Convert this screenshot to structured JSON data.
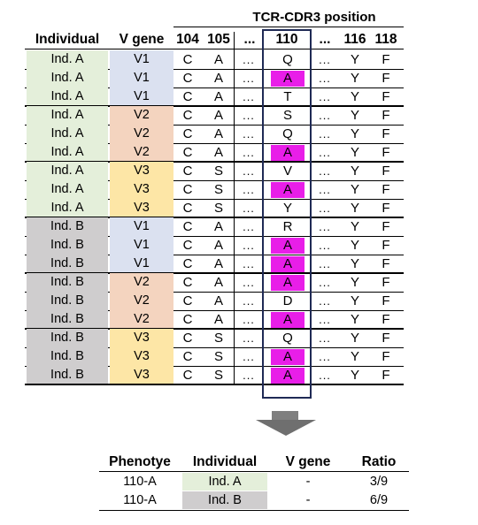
{
  "group_header": "TCR-CDR3 position",
  "headers": {
    "individual": "Individual",
    "vgene": "V gene",
    "p104": "104",
    "p105": "105",
    "pdots1": "...",
    "p110": "110",
    "pdots2": "...",
    "p116": "116",
    "p118": "118"
  },
  "colors": {
    "ind_a": "#e4efda",
    "ind_b": "#cfcdce",
    "v1": "#dbe1f0",
    "v2": "#f4d4bf",
    "v3": "#fde6a6",
    "highlight": "#e81ee8",
    "box": "#1f2a55"
  },
  "rows": [
    {
      "ind": "Ind. A",
      "v": "V1",
      "a104": "C",
      "a105": "A",
      "dots": "...",
      "a110": "Q",
      "hl": false,
      "dots2": "...",
      "a116": "Y",
      "a118": "F"
    },
    {
      "ind": "Ind. A",
      "v": "V1",
      "a104": "C",
      "a105": "A",
      "dots": "...",
      "a110": "A",
      "hl": true,
      "dots2": "...",
      "a116": "Y",
      "a118": "F"
    },
    {
      "ind": "Ind. A",
      "v": "V1",
      "a104": "C",
      "a105": "A",
      "dots": "...",
      "a110": "T",
      "hl": false,
      "dots2": "...",
      "a116": "Y",
      "a118": "F"
    },
    {
      "ind": "Ind. A",
      "v": "V2",
      "a104": "C",
      "a105": "A",
      "dots": "...",
      "a110": "S",
      "hl": false,
      "dots2": "...",
      "a116": "Y",
      "a118": "F"
    },
    {
      "ind": "Ind. A",
      "v": "V2",
      "a104": "C",
      "a105": "A",
      "dots": "...",
      "a110": "Q",
      "hl": false,
      "dots2": "...",
      "a116": "Y",
      "a118": "F"
    },
    {
      "ind": "Ind. A",
      "v": "V2",
      "a104": "C",
      "a105": "A",
      "dots": "...",
      "a110": "A",
      "hl": true,
      "dots2": "...",
      "a116": "Y",
      "a118": "F"
    },
    {
      "ind": "Ind. A",
      "v": "V3",
      "a104": "C",
      "a105": "S",
      "dots": "...",
      "a110": "V",
      "hl": false,
      "dots2": "...",
      "a116": "Y",
      "a118": "F"
    },
    {
      "ind": "Ind. A",
      "v": "V3",
      "a104": "C",
      "a105": "S",
      "dots": "...",
      "a110": "A",
      "hl": true,
      "dots2": "...",
      "a116": "Y",
      "a118": "F"
    },
    {
      "ind": "Ind. A",
      "v": "V3",
      "a104": "C",
      "a105": "S",
      "dots": "...",
      "a110": "Y",
      "hl": false,
      "dots2": "...",
      "a116": "Y",
      "a118": "F"
    },
    {
      "ind": "Ind. B",
      "v": "V1",
      "a104": "C",
      "a105": "A",
      "dots": "...",
      "a110": "R",
      "hl": false,
      "dots2": "...",
      "a116": "Y",
      "a118": "F"
    },
    {
      "ind": "Ind. B",
      "v": "V1",
      "a104": "C",
      "a105": "A",
      "dots": "...",
      "a110": "A",
      "hl": true,
      "dots2": "...",
      "a116": "Y",
      "a118": "F"
    },
    {
      "ind": "Ind. B",
      "v": "V1",
      "a104": "C",
      "a105": "A",
      "dots": "...",
      "a110": "A",
      "hl": true,
      "dots2": "...",
      "a116": "Y",
      "a118": "F"
    },
    {
      "ind": "Ind. B",
      "v": "V2",
      "a104": "C",
      "a105": "A",
      "dots": "...",
      "a110": "A",
      "hl": true,
      "dots2": "...",
      "a116": "Y",
      "a118": "F"
    },
    {
      "ind": "Ind. B",
      "v": "V2",
      "a104": "C",
      "a105": "A",
      "dots": "...",
      "a110": "D",
      "hl": false,
      "dots2": "...",
      "a116": "Y",
      "a118": "F"
    },
    {
      "ind": "Ind. B",
      "v": "V2",
      "a104": "C",
      "a105": "A",
      "dots": "...",
      "a110": "A",
      "hl": true,
      "dots2": "...",
      "a116": "Y",
      "a118": "F"
    },
    {
      "ind": "Ind. B",
      "v": "V3",
      "a104": "C",
      "a105": "S",
      "dots": "...",
      "a110": "Q",
      "hl": false,
      "dots2": "...",
      "a116": "Y",
      "a118": "F"
    },
    {
      "ind": "Ind. B",
      "v": "V3",
      "a104": "C",
      "a105": "S",
      "dots": "...",
      "a110": "A",
      "hl": true,
      "dots2": "...",
      "a116": "Y",
      "a118": "F"
    },
    {
      "ind": "Ind. B",
      "v": "V3",
      "a104": "C",
      "a105": "S",
      "dots": "...",
      "a110": "A",
      "hl": true,
      "dots2": "...",
      "a116": "Y",
      "a118": "F"
    }
  ],
  "summary": {
    "headers": {
      "phenotype": "Phenotye",
      "individual": "Individual",
      "vgene": "V gene",
      "ratio": "Ratio"
    },
    "rows": [
      {
        "phenotype": "110-A",
        "individual": "Ind. A",
        "ind_key": "ind_a",
        "vgene": "-",
        "ratio": "3/9"
      },
      {
        "phenotype": "110-A",
        "individual": "Ind. B",
        "ind_key": "ind_b",
        "vgene": "-",
        "ratio": "6/9"
      }
    ]
  }
}
